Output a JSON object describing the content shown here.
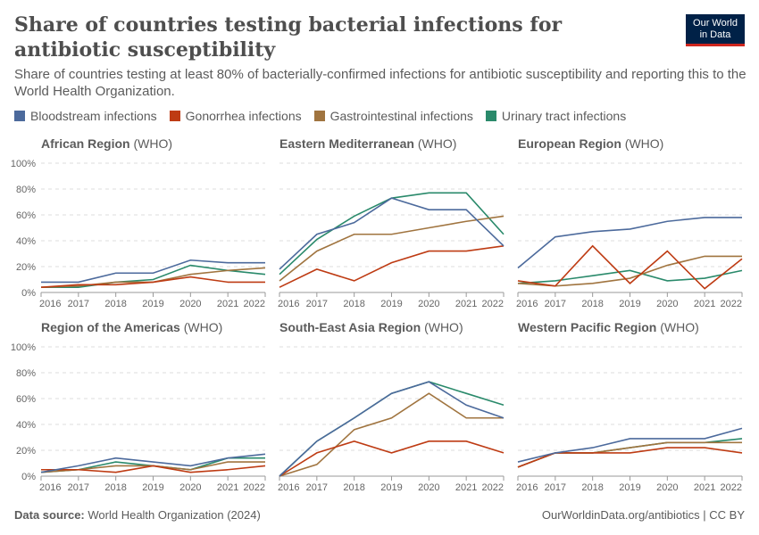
{
  "title": "Share of countries testing bacterial infections for antibiotic susceptibility",
  "subtitle": "Share of countries testing at least 80% of bacterially-confirmed infections for antibiotic susceptibility and reporting this to the World Health Organization.",
  "logo": {
    "line1": "Our World",
    "line2": "in Data"
  },
  "footer": {
    "source_label": "Data source:",
    "source": "World Health Organization (2024)",
    "link": "OurWorldinData.org/antibiotics | CC BY"
  },
  "chart_data": {
    "type": "line",
    "x": [
      2016,
      2017,
      2018,
      2019,
      2020,
      2021,
      2022
    ],
    "ylim": [
      0,
      100
    ],
    "yticks": [
      "0%",
      "20%",
      "40%",
      "60%",
      "80%",
      "100%"
    ],
    "grid": true,
    "legend_position": "top",
    "series_names": [
      "Bloodstream infections",
      "Gonorrhea infections",
      "Gastrointestinal infections",
      "Urinary tract infections"
    ],
    "colors": [
      "#4c6a9c",
      "#be3b13",
      "#a0743f",
      "#2a8a6b"
    ],
    "panels": [
      {
        "name": "African Region",
        "suffix": "(WHO)",
        "series": [
          [
            8,
            8,
            15,
            15,
            25,
            23,
            23
          ],
          [
            4,
            6,
            6,
            8,
            12,
            8,
            8
          ],
          [
            4,
            5,
            8,
            8,
            14,
            17,
            19
          ],
          [
            4,
            4,
            8,
            10,
            21,
            17,
            14
          ]
        ]
      },
      {
        "name": "Eastern Mediterranean",
        "suffix": "(WHO)",
        "series": [
          [
            18,
            45,
            54,
            73,
            64,
            64,
            36
          ],
          [
            4,
            18,
            9,
            23,
            32,
            32,
            36
          ],
          [
            9,
            32,
            45,
            45,
            50,
            55,
            59
          ],
          [
            14,
            41,
            59,
            73,
            77,
            77,
            45
          ]
        ]
      },
      {
        "name": "European Region",
        "suffix": "(WHO)",
        "series": [
          [
            19,
            43,
            47,
            49,
            55,
            58,
            58
          ],
          [
            9,
            5,
            36,
            7,
            32,
            3,
            26
          ],
          [
            7,
            5,
            7,
            11,
            21,
            28,
            28
          ],
          [
            7,
            9,
            13,
            17,
            9,
            11,
            17
          ]
        ]
      },
      {
        "name": "Region of the Americas",
        "suffix": "(WHO)",
        "series": [
          [
            3,
            8,
            14,
            11,
            8,
            14,
            17
          ],
          [
            5,
            5,
            3,
            8,
            3,
            5,
            8
          ],
          [
            3,
            5,
            8,
            8,
            5,
            11,
            11
          ],
          [
            3,
            5,
            11,
            8,
            5,
            14,
            14
          ]
        ]
      },
      {
        "name": "South-East Asia Region",
        "suffix": "(WHO)",
        "series": [
          [
            0,
            27,
            45,
            64,
            73,
            55,
            45
          ],
          [
            0,
            18,
            27,
            18,
            27,
            27,
            18
          ],
          [
            0,
            9,
            36,
            45,
            64,
            45,
            45
          ],
          [
            0,
            27,
            45,
            64,
            73,
            64,
            55
          ]
        ]
      },
      {
        "name": "Western Pacific Region",
        "suffix": "(WHO)",
        "series": [
          [
            11,
            18,
            22,
            29,
            29,
            29,
            37
          ],
          [
            7,
            18,
            18,
            18,
            22,
            22,
            18
          ],
          [
            7,
            18,
            18,
            22,
            26,
            26,
            26
          ],
          [
            7,
            18,
            18,
            22,
            26,
            26,
            29
          ]
        ]
      }
    ]
  }
}
